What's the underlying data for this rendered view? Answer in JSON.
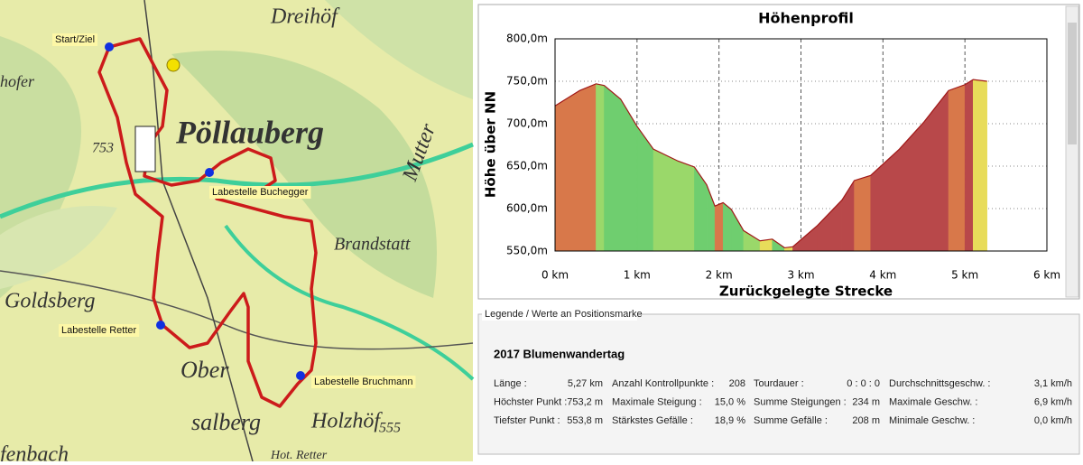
{
  "map": {
    "places": [
      "Dreihöf",
      "Pöllauberg",
      "Goldsberg",
      "Brandstatt",
      "Ober",
      "salberg",
      "Holzhöf",
      "Mutter",
      "hofer",
      "753",
      "555",
      "fenbach",
      "Hot. Retter"
    ],
    "waypoints": [
      "Start/Ziel",
      "Labestelle Buchegger",
      "Labestelle Retter",
      "Labestelle Bruchmann"
    ]
  },
  "chart_data": {
    "type": "area",
    "title": "Höhenprofil",
    "x_label": "Zurückgelegte Strecke",
    "y_label": "Höhe über NN",
    "x": [
      0,
      0.3,
      0.5,
      0.6,
      0.8,
      1.0,
      1.2,
      1.5,
      1.7,
      1.85,
      1.95,
      2.05,
      2.15,
      2.3,
      2.5,
      2.65,
      2.8,
      2.9,
      3.2,
      3.5,
      3.65,
      3.85,
      4.2,
      4.5,
      4.8,
      5.0,
      5.1,
      5.27
    ],
    "values": [
      721,
      739,
      747,
      745,
      729,
      697,
      670,
      656,
      649,
      628,
      603,
      607,
      599,
      574,
      562,
      564,
      553.8,
      555,
      580,
      610,
      633,
      639,
      670,
      702,
      739,
      746,
      752,
      750
    ],
    "color": "#a01818",
    "xlim": [
      0,
      6
    ],
    "ylim": [
      550,
      800
    ],
    "xticks": [
      {
        "value": 0,
        "label": "0 km"
      },
      {
        "value": 1,
        "label": "1 km"
      },
      {
        "value": 2,
        "label": "2 km"
      },
      {
        "value": 3,
        "label": "3 km"
      },
      {
        "value": 4,
        "label": "4 km"
      },
      {
        "value": 5,
        "label": "5 km"
      },
      {
        "value": 6,
        "label": "6 km"
      }
    ],
    "yticks": [
      {
        "value": 550,
        "label": "550,0m"
      },
      {
        "value": 600,
        "label": "600,0m"
      },
      {
        "value": 650,
        "label": "650,0m"
      },
      {
        "value": 700,
        "label": "700,0m"
      },
      {
        "value": 750,
        "label": "750,0m"
      },
      {
        "value": 800,
        "label": "800,0m"
      }
    ],
    "grid": true
  },
  "legend_panel": {
    "heading": "Legende / Werte an Positionsmarke",
    "title": "2017 Blumenwandertag",
    "rows": [
      [
        "Länge :",
        "5,27 km",
        "Anzahl Kontrollpunkte :",
        "208",
        "Tourdauer :",
        "0 : 0 : 0",
        "Durchschnittsgeschw. :",
        "3,1 km/h"
      ],
      [
        "Höchster Punkt :",
        "753,2 m",
        "Maximale Steigung :",
        "15,0 %",
        "Summe Steigungen :",
        "234 m",
        "Maximale Geschw. :",
        "6,9 km/h"
      ],
      [
        "Tiefster Punkt :",
        "553,8 m",
        "Stärkstes Gefälle :",
        "18,9 %",
        "Summe Gefälle :",
        "208 m",
        "Minimale Geschw. :",
        "0,0 km/h"
      ]
    ]
  }
}
